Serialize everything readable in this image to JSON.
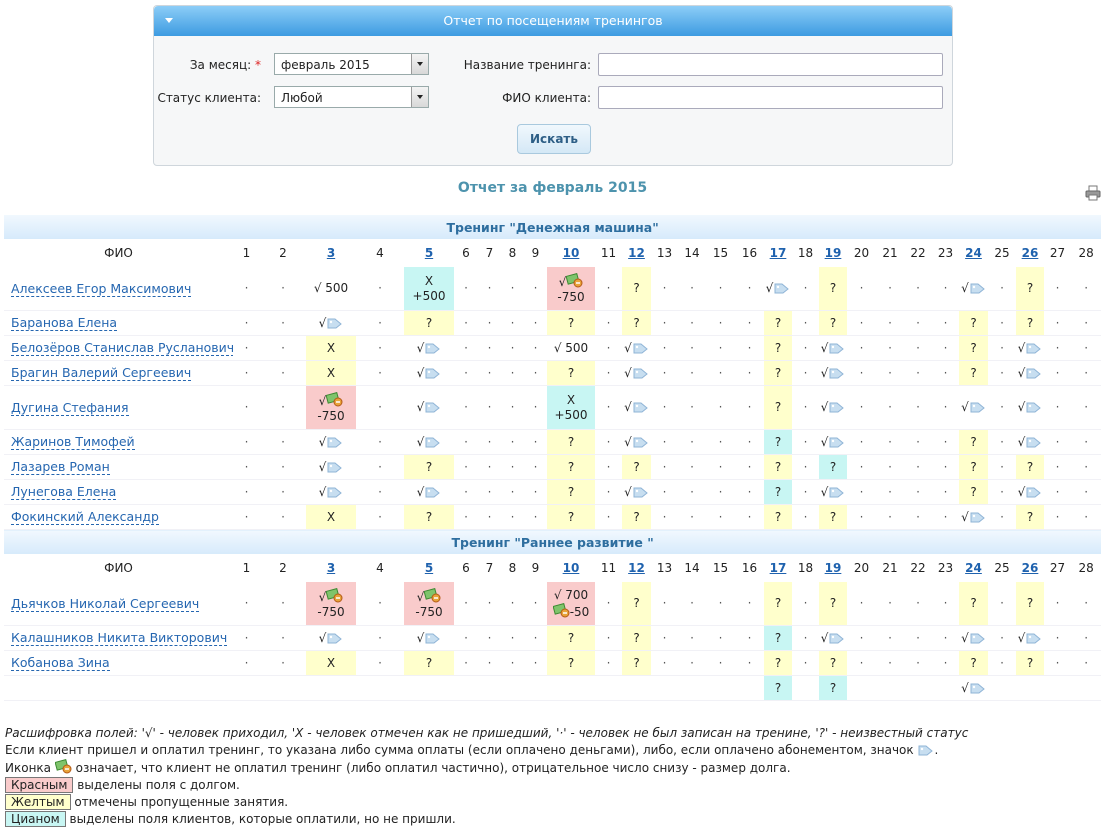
{
  "filter_panel": {
    "title": "Отчет по посещениям тренингов",
    "month_label": "За месяц:",
    "required_mark": "*",
    "month_value": "февраль 2015",
    "training_label": "Название тренинга:",
    "status_label": "Статус клиента:",
    "status_value": "Любой",
    "client_label": "ФИО клиента:",
    "search_button": "Искать"
  },
  "report_title": "Отчет за февраль 2015",
  "trainings": [
    {
      "title": "Тренинг \"Денежная машина\"",
      "name_header": "ФИО",
      "days": [
        1,
        2,
        3,
        4,
        5,
        6,
        7,
        8,
        9,
        10,
        11,
        12,
        13,
        14,
        15,
        16,
        17,
        18,
        19,
        20,
        21,
        22,
        23,
        24,
        25,
        26,
        27,
        28
      ],
      "link_days": [
        3,
        5,
        10,
        12,
        17,
        19,
        24,
        26
      ],
      "rows": [
        {
          "name": "Алексеев Егор Максимович",
          "cells": [
            "·",
            "·",
            {
              "text": "√ 500"
            },
            "·",
            {
              "text": "X",
              "sub": "+500",
              "bg": "cyan"
            },
            "·",
            "·",
            "·",
            "·",
            {
              "text": "√",
              "icon": "money",
              "sub": "-750",
              "bg": "red"
            },
            "·",
            {
              "text": "?",
              "bg": "yellow"
            },
            "·",
            "·",
            "·",
            "·",
            {
              "text": "√",
              "icon": "tag"
            },
            "·",
            {
              "text": "?",
              "bg": "yellow"
            },
            "·",
            "·",
            "·",
            "·",
            {
              "text": "√",
              "icon": "tag"
            },
            "·",
            {
              "text": "?",
              "bg": "yellow"
            },
            "·",
            "·"
          ]
        },
        {
          "name": "Баранова Елена",
          "cells": [
            "·",
            "·",
            {
              "text": "√",
              "icon": "tag"
            },
            "·",
            {
              "text": "?",
              "bg": "yellow"
            },
            "·",
            "·",
            "·",
            "·",
            {
              "text": "?",
              "bg": "yellow"
            },
            "·",
            {
              "text": "?",
              "bg": "yellow"
            },
            "·",
            "·",
            "·",
            "·",
            {
              "text": "?",
              "bg": "yellow"
            },
            "·",
            {
              "text": "?",
              "bg": "yellow"
            },
            "·",
            "·",
            "·",
            "·",
            {
              "text": "?",
              "bg": "yellow"
            },
            "·",
            {
              "text": "?",
              "bg": "yellow"
            },
            "·",
            "·"
          ]
        },
        {
          "name": "Белозёров Станислав Русланович",
          "cells": [
            "·",
            "·",
            {
              "text": "X",
              "bg": "yellow"
            },
            "·",
            {
              "text": "√",
              "icon": "tag"
            },
            "·",
            "·",
            "·",
            "·",
            {
              "text": "√ 500"
            },
            "·",
            {
              "text": "√",
              "icon": "tag"
            },
            "·",
            "·",
            "·",
            "·",
            {
              "text": "?",
              "bg": "yellow"
            },
            "·",
            {
              "text": "√",
              "icon": "tag"
            },
            "·",
            "·",
            "·",
            "·",
            {
              "text": "?",
              "bg": "yellow"
            },
            "·",
            {
              "text": "√",
              "icon": "tag"
            },
            "·",
            "·"
          ]
        },
        {
          "name": "Брагин Валерий Сергеевич",
          "cells": [
            "·",
            "·",
            {
              "text": "X",
              "bg": "yellow"
            },
            "·",
            {
              "text": "√",
              "icon": "tag"
            },
            "·",
            "·",
            "·",
            "·",
            {
              "text": "?",
              "bg": "yellow"
            },
            "·",
            {
              "text": "√",
              "icon": "tag"
            },
            "·",
            "·",
            "·",
            "·",
            {
              "text": "?",
              "bg": "yellow"
            },
            "·",
            {
              "text": "√",
              "icon": "tag"
            },
            "·",
            "·",
            "·",
            "·",
            {
              "text": "?",
              "bg": "yellow"
            },
            "·",
            {
              "text": "√",
              "icon": "tag"
            },
            "·",
            "·"
          ]
        },
        {
          "name": "Дугина Стефания",
          "cells": [
            "·",
            "·",
            {
              "text": "√",
              "icon": "money",
              "sub": "-750",
              "bg": "red"
            },
            "·",
            {
              "text": "√",
              "icon": "tag"
            },
            "·",
            "·",
            "·",
            "·",
            {
              "text": "X",
              "sub": "+500",
              "bg": "cyan"
            },
            "·",
            {
              "text": "√",
              "icon": "tag"
            },
            "·",
            "·",
            "·",
            "·",
            {
              "text": "?",
              "bg": "yellow"
            },
            "·",
            {
              "text": "√",
              "icon": "tag"
            },
            "·",
            "·",
            "·",
            "·",
            {
              "text": "√",
              "icon": "tag"
            },
            "·",
            {
              "text": "√",
              "icon": "tag"
            },
            "·",
            "·"
          ]
        },
        {
          "name": "Жаринов Тимофей",
          "cells": [
            "·",
            "·",
            {
              "text": "√",
              "icon": "tag"
            },
            "·",
            {
              "text": "√",
              "icon": "tag"
            },
            "·",
            "·",
            "·",
            "·",
            {
              "text": "?",
              "bg": "yellow"
            },
            "·",
            {
              "text": "√",
              "icon": "tag"
            },
            "·",
            "·",
            "·",
            "·",
            {
              "text": "?",
              "bg": "cyan"
            },
            "·",
            {
              "text": "√",
              "icon": "tag"
            },
            "·",
            "·",
            "·",
            "·",
            {
              "text": "?",
              "bg": "yellow"
            },
            "·",
            {
              "text": "√",
              "icon": "tag"
            },
            "·",
            "·"
          ]
        },
        {
          "name": "Лазарев Роман",
          "cells": [
            "·",
            "·",
            {
              "text": "√",
              "icon": "tag"
            },
            "·",
            {
              "text": "?",
              "bg": "yellow"
            },
            "·",
            "·",
            "·",
            "·",
            {
              "text": "?",
              "bg": "yellow"
            },
            "·",
            {
              "text": "?",
              "bg": "yellow"
            },
            "·",
            "·",
            "·",
            "·",
            {
              "text": "?",
              "bg": "yellow"
            },
            "·",
            {
              "text": "?",
              "bg": "cyan"
            },
            "·",
            "·",
            "·",
            "·",
            {
              "text": "?",
              "bg": "yellow"
            },
            "·",
            {
              "text": "?",
              "bg": "yellow"
            },
            "·",
            "·"
          ]
        },
        {
          "name": "Лунегова Елена",
          "cells": [
            "·",
            "·",
            {
              "text": "√",
              "icon": "tag"
            },
            "·",
            {
              "text": "√",
              "icon": "tag"
            },
            "·",
            "·",
            "·",
            "·",
            {
              "text": "?",
              "bg": "yellow"
            },
            "·",
            {
              "text": "√",
              "icon": "tag"
            },
            "·",
            "·",
            "·",
            "·",
            {
              "text": "?",
              "bg": "cyan"
            },
            "·",
            {
              "text": "√",
              "icon": "tag"
            },
            "·",
            "·",
            "·",
            "·",
            {
              "text": "?",
              "bg": "yellow"
            },
            "·",
            {
              "text": "√",
              "icon": "tag"
            },
            "·",
            "·"
          ]
        },
        {
          "name": "Фокинский Александр",
          "cells": [
            "·",
            "·",
            {
              "text": "X",
              "bg": "yellow"
            },
            "·",
            {
              "text": "?",
              "bg": "yellow"
            },
            "·",
            "·",
            "·",
            "·",
            {
              "text": "?",
              "bg": "yellow"
            },
            "·",
            {
              "text": "?",
              "bg": "yellow"
            },
            "·",
            "·",
            "·",
            "·",
            {
              "text": "?",
              "bg": "yellow"
            },
            "·",
            {
              "text": "?",
              "bg": "yellow"
            },
            "·",
            "·",
            "·",
            "·",
            {
              "text": "√",
              "icon": "tag"
            },
            "·",
            {
              "text": "?",
              "bg": "yellow"
            },
            "·",
            "·"
          ]
        }
      ]
    },
    {
      "title": "Тренинг \"Раннее развитие \"",
      "name_header": "ФИО",
      "days": [
        1,
        2,
        3,
        4,
        5,
        6,
        7,
        8,
        9,
        10,
        11,
        12,
        13,
        14,
        15,
        16,
        17,
        18,
        19,
        20,
        21,
        22,
        23,
        24,
        25,
        26,
        27,
        28
      ],
      "link_days": [
        3,
        5,
        10,
        12,
        17,
        19,
        24,
        26
      ],
      "rows": [
        {
          "name": "Дьячков Николай Сергеевич",
          "cells": [
            "·",
            "·",
            {
              "text": "√",
              "icon": "money",
              "sub": "-750",
              "bg": "red"
            },
            "·",
            {
              "text": "√",
              "icon": "money",
              "sub": "-750",
              "bg": "red"
            },
            "·",
            "·",
            "·",
            "·",
            {
              "text": "√ 700",
              "sub_icon": "money",
              "sub": "-50",
              "bg": "red"
            },
            "·",
            {
              "text": "?",
              "bg": "yellow"
            },
            "·",
            "·",
            "·",
            "·",
            {
              "text": "?",
              "bg": "yellow"
            },
            "·",
            {
              "text": "?",
              "bg": "yellow"
            },
            "·",
            "·",
            "·",
            "·",
            {
              "text": "?",
              "bg": "yellow"
            },
            "·",
            {
              "text": "?",
              "bg": "yellow"
            },
            "·",
            "·"
          ]
        },
        {
          "name": "Калашников Никита Викторович",
          "cells": [
            "·",
            "·",
            {
              "text": "√",
              "icon": "tag"
            },
            "·",
            {
              "text": "√",
              "icon": "tag"
            },
            "·",
            "·",
            "·",
            "·",
            {
              "text": "?",
              "bg": "yellow"
            },
            "·",
            {
              "text": "?",
              "bg": "yellow"
            },
            "·",
            "·",
            "·",
            "·",
            {
              "text": "?",
              "bg": "cyan"
            },
            "·",
            {
              "text": "√",
              "icon": "tag"
            },
            "·",
            "·",
            "·",
            "·",
            {
              "text": "√",
              "icon": "tag"
            },
            "·",
            {
              "text": "√",
              "icon": "tag"
            },
            "·",
            "·"
          ]
        },
        {
          "name": "Кобанова Зина",
          "cells": [
            "·",
            "·",
            {
              "text": "X",
              "bg": "yellow"
            },
            "·",
            {
              "text": "?",
              "bg": "yellow"
            },
            "·",
            "·",
            "·",
            "·",
            {
              "text": "?",
              "bg": "yellow"
            },
            "·",
            {
              "text": "?",
              "bg": "yellow"
            },
            "·",
            "·",
            "·",
            "·",
            {
              "text": "?",
              "bg": "yellow"
            },
            "·",
            {
              "text": "?",
              "bg": "yellow"
            },
            "·",
            "·",
            "·",
            "·",
            {
              "text": "?",
              "bg": "yellow"
            },
            "·",
            {
              "text": "?",
              "bg": "yellow"
            },
            "·",
            "·"
          ]
        },
        {
          "name": null,
          "cells": [
            null,
            null,
            null,
            null,
            null,
            null,
            null,
            null,
            null,
            null,
            null,
            null,
            null,
            null,
            null,
            null,
            {
              "text": "?",
              "bg": "cyan"
            },
            null,
            {
              "text": "?",
              "bg": "cyan"
            },
            null,
            null,
            null,
            null,
            {
              "text": "√",
              "icon": "tag"
            },
            null,
            null,
            null,
            null
          ]
        }
      ]
    }
  ],
  "legend": {
    "line1": "Расшифровка полей: '√' - человек приходил, 'X - человек отмечен как не пришедший, '·' - человек не был записан на тренине, '?' - неизвестный статус",
    "line2_before": "Если клиент пришел и оплатил тренинг, то указана либо сумма оплаты (если оплачено деньгами), либо, если оплачено абонементом, значок",
    "line2_after": ".",
    "line3_before": "Иконка",
    "line3_after": "означает, что клиент не оплатил тренинг (либо оплатил частично), отрицательное число снизу - размер долга.",
    "red_label": "Красным",
    "red_text": "выделены поля с долгом.",
    "yellow_label": "Желтым",
    "yellow_text": "отмечены пропущенные занятия.",
    "cyan_label": "Цианом",
    "cyan_text": "выделены поля клиентов, которые оплатили, но не пришли."
  }
}
